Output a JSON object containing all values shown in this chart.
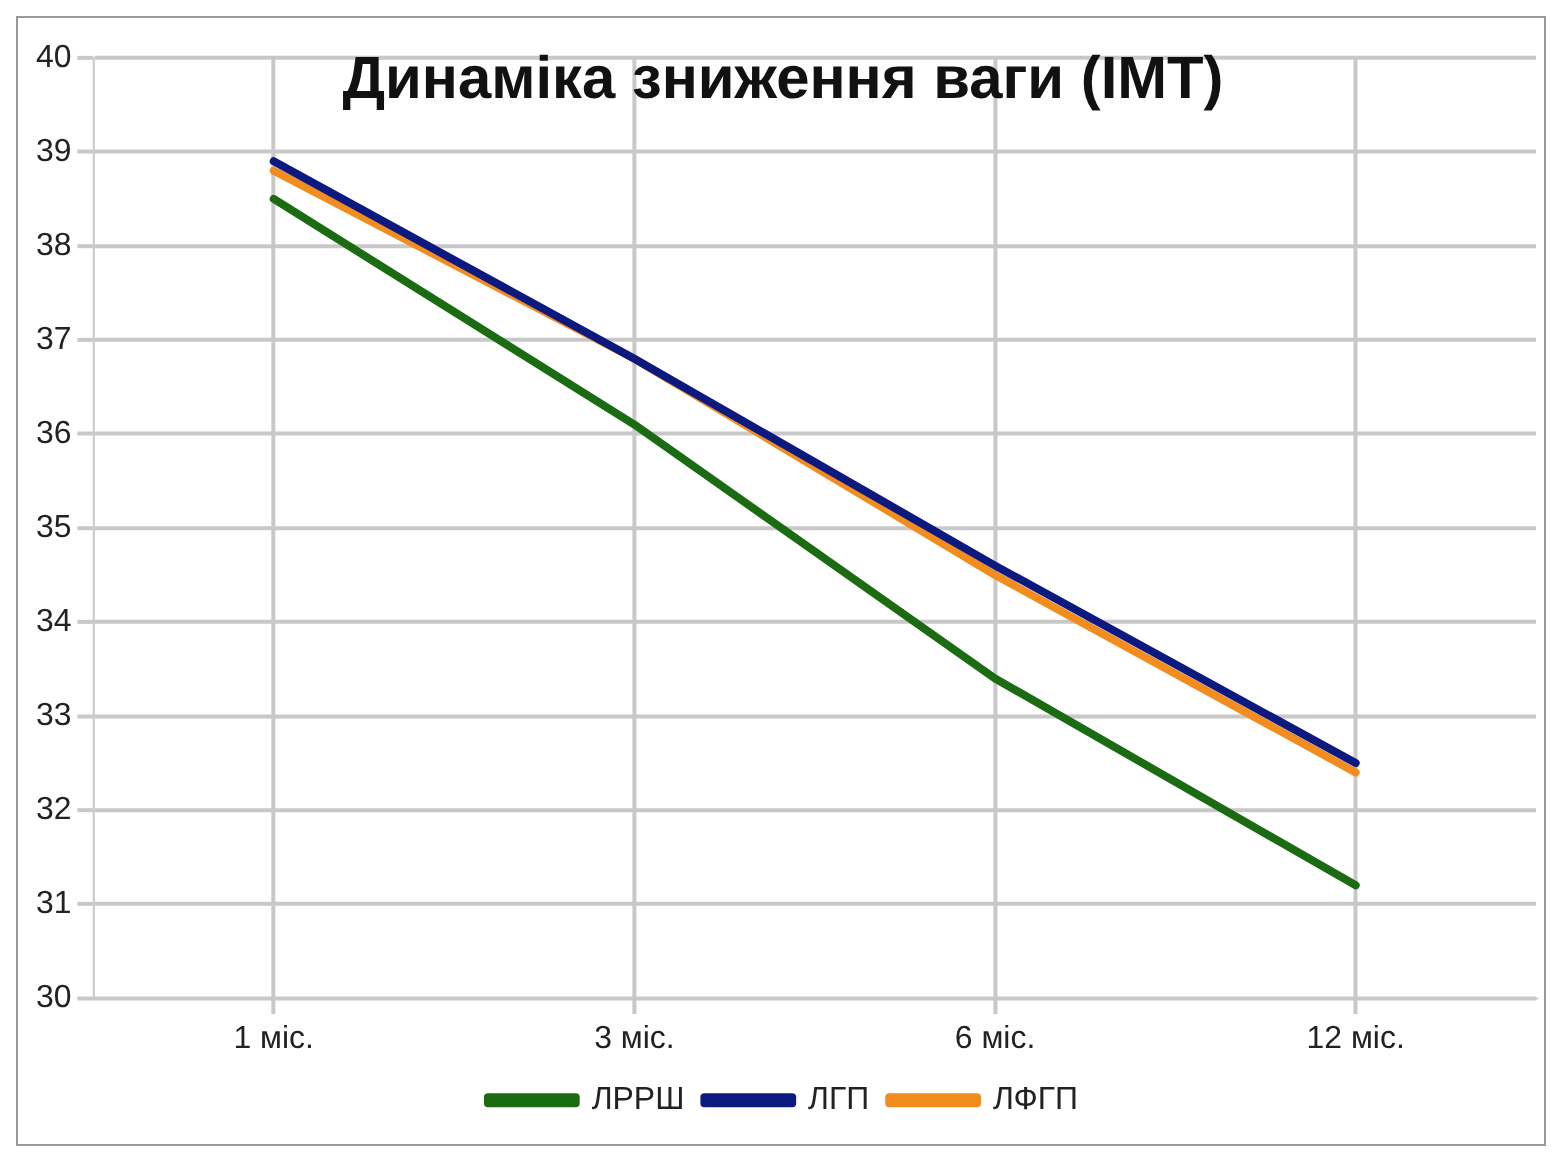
{
  "chart_data": {
    "type": "line",
    "title": "Динаміка зниження ваги (ІМТ)",
    "categories": [
      "1 міс.",
      "3 міс.",
      "6 міс.",
      "12 міс."
    ],
    "series": [
      {
        "name": "ЛРРШ",
        "color": "#1a6b12",
        "values": [
          38.5,
          36.1,
          33.4,
          31.2
        ]
      },
      {
        "name": "ЛГП",
        "color": "#0c1a80",
        "values": [
          38.9,
          36.8,
          34.6,
          32.5
        ]
      },
      {
        "name": "ЛФГП",
        "color": "#f28c1e",
        "values": [
          38.8,
          36.8,
          34.5,
          32.4
        ]
      }
    ],
    "ylim": [
      30,
      40
    ],
    "yticks": [
      30,
      31,
      32,
      33,
      34,
      35,
      36,
      37,
      38,
      39,
      40
    ],
    "grid": true,
    "legend": "bottom",
    "marker": "none",
    "line_style": "solid"
  }
}
